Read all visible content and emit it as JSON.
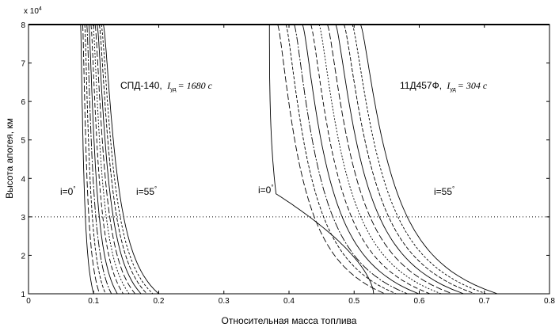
{
  "chart_data": {
    "type": "line",
    "xlabel": "Относительная масса топлива",
    "ylabel": "Высота апогея, км",
    "y_exponent_label": "x 10",
    "y_exponent_power": "4",
    "xlim": [
      0,
      0.8
    ],
    "ylim": [
      10000,
      80000
    ],
    "x_ticks": [
      0,
      0.1,
      0.2,
      0.3,
      0.4,
      0.5,
      0.6,
      0.7,
      0.8
    ],
    "x_tick_labels": [
      "0",
      "0.1",
      "0.2",
      "0.3",
      "0.4",
      "0.5",
      "0.6",
      "0.7",
      "0.8"
    ],
    "y_ticks": [
      10000,
      20000,
      30000,
      40000,
      50000,
      60000,
      70000,
      80000
    ],
    "y_tick_labels": [
      "1",
      "2",
      "3",
      "4",
      "5",
      "6",
      "7",
      "8"
    ],
    "grid": false,
    "reference_line_y": 30000,
    "groups": [
      {
        "id": "spd140",
        "engine_label": "СПД-140,",
        "isp_symbol": "I",
        "isp_sub": "уд",
        "isp_value": "= 1680 c",
        "incl_min_label": "i=0",
        "incl_max_label": "i=55",
        "degree": "°",
        "curve_count": 12,
        "left_curve": {
          "x_at_80000": 0.08,
          "x_at_10000": 0.1
        },
        "right_curve": {
          "x_at_80000": 0.115,
          "x_at_10000": 0.2
        }
      },
      {
        "id": "11d457f",
        "engine_label": "11Д457Ф,",
        "isp_symbol": "I",
        "isp_sub": "уд",
        "isp_value": "= 304 c",
        "incl_min_label": "i=0",
        "incl_max_label": "i=55",
        "degree": "°",
        "curve_count": 12,
        "left_curve": {
          "x_at_80000": 0.37,
          "x_at_36000": 0.38,
          "x_at_10000": 0.53
        },
        "right_curve": {
          "x_at_80000": 0.51,
          "x_at_10000": 0.72
        }
      }
    ]
  }
}
